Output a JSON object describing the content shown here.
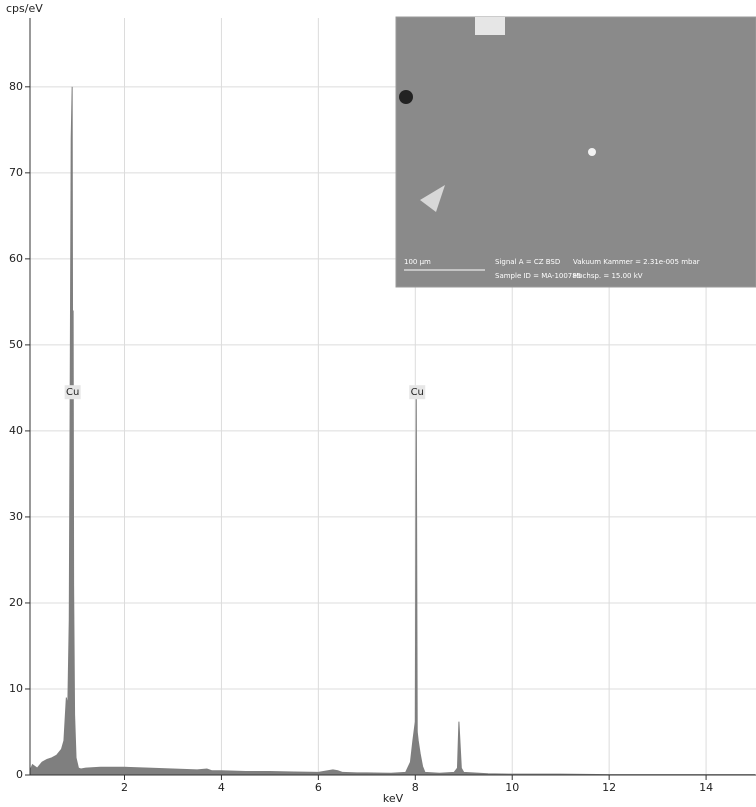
{
  "chart_data": {
    "type": "area",
    "y_label": "cps/eV",
    "x_label": "keV",
    "x": [
      0.05,
      0.1,
      0.2,
      0.3,
      0.4,
      0.5,
      0.6,
      0.7,
      0.75,
      0.8,
      0.83,
      0.86,
      0.9,
      0.92,
      0.93,
      0.94,
      0.95,
      0.97,
      1.0,
      1.05,
      1.1,
      1.2,
      1.5,
      2.0,
      2.5,
      3.0,
      3.5,
      3.7,
      3.8,
      4.0,
      4.5,
      5.0,
      5.5,
      6.0,
      6.3,
      6.4,
      6.5,
      6.8,
      7.0,
      7.5,
      7.8,
      7.9,
      7.95,
      8.0,
      8.02,
      8.04,
      8.06,
      8.1,
      8.15,
      8.2,
      8.5,
      8.8,
      8.87,
      8.9,
      8.95,
      9.0,
      9.5,
      10,
      11,
      12,
      13,
      14,
      15
    ],
    "values": [
      0.5,
      1.2,
      0.8,
      1.5,
      1.8,
      2.0,
      2.3,
      3,
      4,
      9,
      8,
      18,
      74,
      80,
      44,
      54,
      22,
      7,
      2,
      0.8,
      0.7,
      0.8,
      0.9,
      0.9,
      0.8,
      0.7,
      0.6,
      0.7,
      0.5,
      0.5,
      0.4,
      0.4,
      0.35,
      0.3,
      0.6,
      0.5,
      0.3,
      0.25,
      0.25,
      0.2,
      0.3,
      1.5,
      4,
      6.2,
      44,
      5,
      4,
      2.5,
      1,
      0.3,
      0.2,
      0.3,
      0.8,
      6.2,
      0.8,
      0.3,
      0.15,
      0.1,
      0.1,
      0.05,
      0.05,
      0.05,
      0.05
    ],
    "color": "#7f7f7f",
    "xlim": [
      0.05,
      15.03
    ],
    "ylim": [
      0,
      88
    ],
    "xticks": [
      2,
      4,
      6,
      8,
      10,
      12,
      14
    ],
    "yticks": [
      0,
      10,
      20,
      30,
      40,
      50,
      60,
      70,
      80
    ],
    "grid": true,
    "annotations": [
      {
        "text": "Cu",
        "x": 0.93,
        "y": 44.5
      },
      {
        "text": "Cu",
        "x": 8.04,
        "y": 44.5
      }
    ],
    "inset": {
      "scale_bar": "100 µm",
      "lines": [
        "Signal A = CZ BSD",
        "Vakuum Kammer = 2.31e-005 mbar",
        "Sample ID = MA-100785",
        "Hochsp. = 15.00 kV"
      ]
    }
  }
}
